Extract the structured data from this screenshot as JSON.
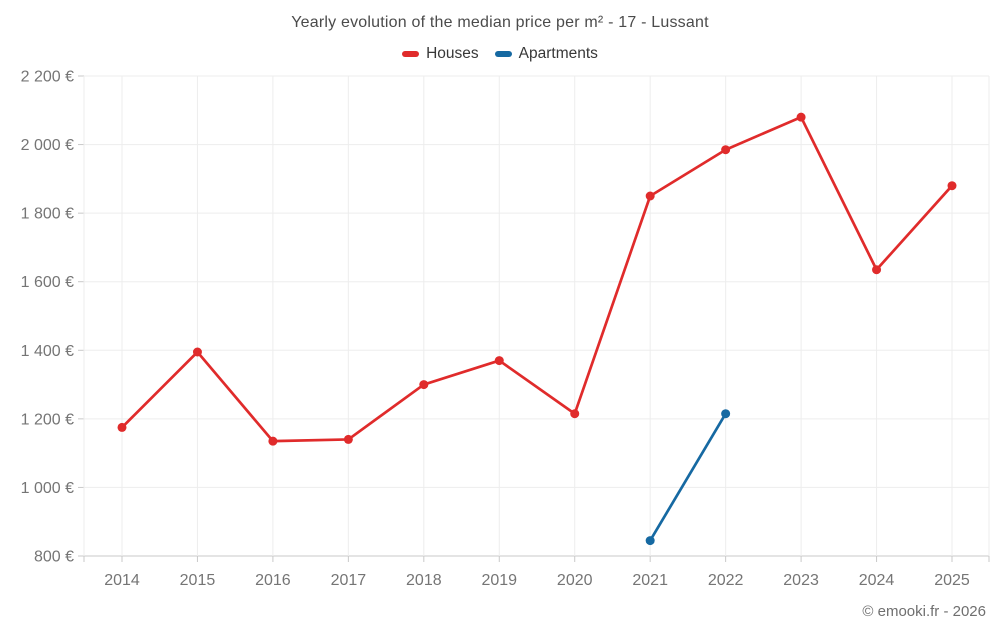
{
  "chart": {
    "title": "Yearly evolution of the median price per m² - 17 - Lussant",
    "footer": "© emooki.fr - 2026"
  },
  "chart_data": {
    "type": "line",
    "title": "Yearly evolution of the median price per m² - 17 - Lussant",
    "categories": [
      "2014",
      "2015",
      "2016",
      "2017",
      "2018",
      "2019",
      "2020",
      "2021",
      "2022",
      "2023",
      "2024",
      "2025"
    ],
    "series": [
      {
        "name": "Houses",
        "color": "#e02b2b",
        "values": [
          1175,
          1395,
          1135,
          1140,
          1300,
          1370,
          1215,
          1850,
          1985,
          2080,
          1635,
          1880
        ]
      },
      {
        "name": "Apartments",
        "color": "#1669a2",
        "values": [
          null,
          null,
          null,
          null,
          null,
          null,
          null,
          845,
          1215,
          null,
          null,
          null
        ]
      }
    ],
    "ylim": [
      800,
      2200
    ],
    "yticks": {
      "values": [
        800,
        1000,
        1200,
        1400,
        1600,
        1800,
        2000,
        2200
      ],
      "labels": [
        "800 €",
        "1 000 €",
        "1 200 €",
        "1 400 €",
        "1 600 €",
        "1 800 €",
        "2 000 €",
        "2 200 €"
      ]
    },
    "grid": true,
    "legend_position": "top",
    "footer": "© emooki.fr - 2026"
  }
}
